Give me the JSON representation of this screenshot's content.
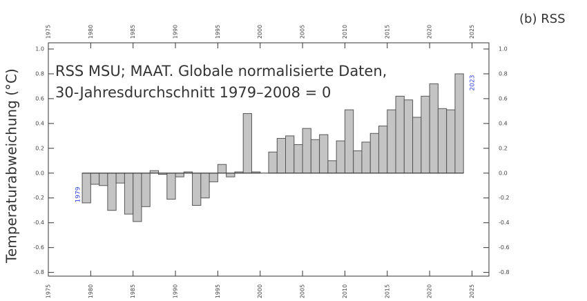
{
  "chart_data": {
    "type": "bar",
    "title": "(b) RSS",
    "annotation": [
      "RSS MSU; MAAT. Globale normalisierte Daten,",
      "30-Jahresdurchschnitt 1979–2008 = 0"
    ],
    "ylabel": "Temperaturabweichung (°C)",
    "start_label": "1979",
    "end_label": "2023",
    "x": [
      1979,
      1980,
      1981,
      1982,
      1983,
      1984,
      1985,
      1986,
      1987,
      1988,
      1989,
      1990,
      1991,
      1992,
      1993,
      1994,
      1995,
      1996,
      1997,
      1998,
      1999,
      2000,
      2001,
      2002,
      2003,
      2004,
      2005,
      2006,
      2007,
      2008,
      2009,
      2010,
      2011,
      2012,
      2013,
      2014,
      2015,
      2016,
      2017,
      2018,
      2019,
      2020,
      2021,
      2022,
      2023
    ],
    "values": [
      -0.24,
      -0.09,
      -0.1,
      -0.3,
      -0.08,
      -0.33,
      -0.39,
      -0.27,
      0.02,
      -0.01,
      -0.21,
      -0.03,
      0.01,
      -0.26,
      -0.2,
      -0.07,
      0.07,
      -0.03,
      0.01,
      0.48,
      0.01,
      0.0,
      0.17,
      0.28,
      0.3,
      0.23,
      0.36,
      0.27,
      0.31,
      0.1,
      0.26,
      0.51,
      0.18,
      0.25,
      0.32,
      0.38,
      0.51,
      0.62,
      0.59,
      0.45,
      0.62,
      0.72,
      0.52,
      0.51,
      0.8
    ],
    "color": "#c4c4c4",
    "edgecolor": "#555555",
    "xlim": [
      1975,
      2027
    ],
    "xticks": [
      1975,
      1980,
      1985,
      1990,
      1995,
      2000,
      2005,
      2010,
      2015,
      2020,
      2025
    ],
    "ylim": [
      -0.83,
      1.05
    ],
    "yticks": [
      {
        "value": 1,
        "label": "1.0"
      },
      0.8,
      0.6,
      0.4,
      0.2,
      {
        "value": 0,
        "label": "0.0"
      },
      -0.2,
      -0.4,
      -0.6,
      -0.8
    ]
  }
}
